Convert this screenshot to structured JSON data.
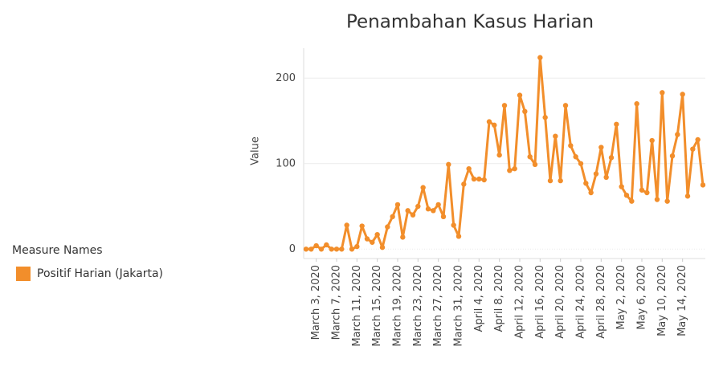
{
  "chart_data": {
    "type": "line",
    "title": "Penambahan Kasus Harian",
    "y_label": "Value",
    "legend_title": "Measure Names",
    "legend": "left",
    "categories": [
      null,
      null,
      "March 3, 2020",
      null,
      null,
      null,
      "March 7, 2020",
      null,
      null,
      null,
      "March 11, 2020",
      null,
      null,
      null,
      "March 15, 2020",
      null,
      null,
      null,
      "March 19, 2020",
      null,
      null,
      null,
      "March 23, 2020",
      null,
      null,
      null,
      "March 27, 2020",
      null,
      null,
      null,
      "March 31, 2020",
      null,
      null,
      null,
      "April 4, 2020",
      null,
      null,
      null,
      "April 8, 2020",
      null,
      null,
      null,
      "April 12, 2020",
      null,
      null,
      null,
      "April 16, 2020",
      null,
      null,
      null,
      "April 20, 2020",
      null,
      null,
      null,
      "April 24, 2020",
      null,
      null,
      null,
      "April 28, 2020",
      null,
      null,
      null,
      "May 2, 2020",
      null,
      null,
      null,
      "May 6, 2020",
      null,
      null,
      null,
      "May 10, 2020",
      null,
      null,
      null,
      "May 14, 2020",
      null,
      null,
      null,
      null
    ],
    "series": [
      {
        "name": "Positif Harian (Jakarta)",
        "color": "#f28e2b",
        "values": [
          0,
          0,
          4,
          0,
          5,
          0,
          0,
          0,
          28,
          0,
          3,
          27,
          12,
          8,
          17,
          2,
          26,
          38,
          52,
          14,
          45,
          40,
          50,
          72,
          47,
          45,
          52,
          38,
          99,
          28,
          15,
          76,
          94,
          82,
          82,
          81,
          149,
          145,
          110,
          168,
          92,
          94,
          180,
          161,
          108,
          99,
          224,
          154,
          80,
          132,
          80,
          168,
          121,
          108,
          100,
          77,
          66,
          88,
          119,
          84,
          107,
          146,
          73,
          63,
          56,
          170,
          69,
          66,
          127,
          58,
          183,
          56,
          109,
          134,
          181,
          62,
          117,
          128,
          75
        ]
      }
    ],
    "ylim": [
      -11,
      235
    ],
    "yticks": [
      0,
      100,
      200
    ],
    "grid": true
  }
}
